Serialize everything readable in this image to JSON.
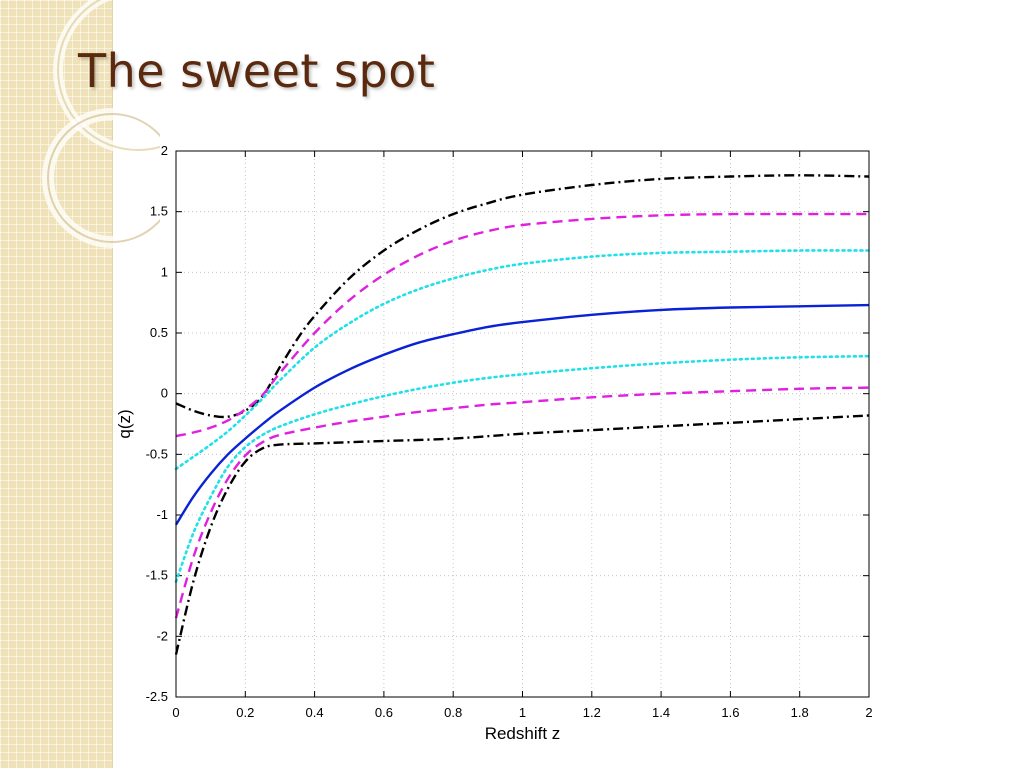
{
  "slide": {
    "title": "The sweet spot"
  },
  "colors": {
    "title": "#5b2a0e",
    "sidebar": "#efe1b8",
    "curve_black": "#000000",
    "curve_magenta": "#e020e0",
    "curve_cyan": "#20e0e8",
    "curve_blue": "#0a22d6"
  },
  "chart_data": {
    "type": "line",
    "title": "",
    "xlabel": "Redshift z",
    "ylabel": "q(z)",
    "xlim": [
      0,
      2
    ],
    "ylim": [
      -2.5,
      2
    ],
    "xticks": [
      "0",
      "0.2",
      "0.4",
      "0.6",
      "0.8",
      "1",
      "1.2",
      "1.4",
      "1.6",
      "1.8",
      "2"
    ],
    "yticks": [
      "2",
      "1.5",
      "1",
      "0.5",
      "0",
      "-0.5",
      "-1",
      "-1.5",
      "-2",
      "-2.5"
    ],
    "grid": true,
    "series": [
      {
        "style": "dashdot",
        "color": "black",
        "x": [
          0,
          0.05,
          0.1,
          0.15,
          0.2,
          0.25,
          0.3,
          0.35,
          0.4,
          0.5,
          0.6,
          0.7,
          0.8,
          0.9,
          1.0,
          1.2,
          1.4,
          1.6,
          1.8,
          2.0
        ],
        "y": [
          -0.08,
          -0.14,
          -0.18,
          -0.19,
          -0.14,
          -0.02,
          0.22,
          0.45,
          0.64,
          0.95,
          1.18,
          1.35,
          1.48,
          1.57,
          1.64,
          1.72,
          1.77,
          1.79,
          1.8,
          1.79
        ]
      },
      {
        "style": "dashed",
        "color": "magenta",
        "x": [
          0,
          0.05,
          0.1,
          0.15,
          0.2,
          0.25,
          0.3,
          0.4,
          0.5,
          0.6,
          0.7,
          0.8,
          0.9,
          1.0,
          1.2,
          1.4,
          1.6,
          1.8,
          2.0
        ],
        "y": [
          -0.35,
          -0.32,
          -0.28,
          -0.22,
          -0.13,
          -0.01,
          0.17,
          0.5,
          0.77,
          0.98,
          1.14,
          1.26,
          1.34,
          1.39,
          1.44,
          1.47,
          1.48,
          1.48,
          1.48
        ]
      },
      {
        "style": "dotted",
        "color": "cyan",
        "x": [
          0,
          0.05,
          0.1,
          0.15,
          0.2,
          0.25,
          0.3,
          0.4,
          0.5,
          0.6,
          0.7,
          0.8,
          0.9,
          1.0,
          1.2,
          1.4,
          1.6,
          1.8,
          2.0
        ],
        "y": [
          -0.62,
          -0.52,
          -0.42,
          -0.31,
          -0.18,
          -0.04,
          0.11,
          0.38,
          0.58,
          0.74,
          0.86,
          0.95,
          1.02,
          1.07,
          1.13,
          1.16,
          1.17,
          1.18,
          1.18
        ]
      },
      {
        "style": "solid",
        "color": "blue",
        "x": [
          0,
          0.05,
          0.1,
          0.15,
          0.2,
          0.25,
          0.3,
          0.4,
          0.5,
          0.6,
          0.7,
          0.8,
          0.9,
          1.0,
          1.2,
          1.4,
          1.6,
          1.8,
          2.0
        ],
        "y": [
          -1.08,
          -0.85,
          -0.66,
          -0.5,
          -0.37,
          -0.25,
          -0.14,
          0.05,
          0.2,
          0.32,
          0.42,
          0.49,
          0.55,
          0.59,
          0.65,
          0.69,
          0.71,
          0.72,
          0.73
        ]
      },
      {
        "style": "dotted",
        "color": "cyan",
        "x": [
          0,
          0.05,
          0.1,
          0.15,
          0.2,
          0.25,
          0.3,
          0.4,
          0.5,
          0.6,
          0.7,
          0.8,
          0.9,
          1.0,
          1.2,
          1.4,
          1.6,
          1.8,
          2.0
        ],
        "y": [
          -1.55,
          -1.15,
          -0.85,
          -0.6,
          -0.44,
          -0.34,
          -0.27,
          -0.17,
          -0.09,
          -0.02,
          0.04,
          0.09,
          0.13,
          0.16,
          0.21,
          0.25,
          0.28,
          0.3,
          0.31
        ]
      },
      {
        "style": "dashed",
        "color": "magenta",
        "x": [
          0,
          0.05,
          0.1,
          0.15,
          0.2,
          0.25,
          0.3,
          0.4,
          0.5,
          0.6,
          0.7,
          0.8,
          0.9,
          1.0,
          1.2,
          1.4,
          1.6,
          1.8,
          2.0
        ],
        "y": [
          -1.85,
          -1.35,
          -0.98,
          -0.7,
          -0.51,
          -0.4,
          -0.34,
          -0.28,
          -0.23,
          -0.19,
          -0.15,
          -0.12,
          -0.09,
          -0.07,
          -0.03,
          0.0,
          0.02,
          0.04,
          0.05
        ]
      },
      {
        "style": "dashdot",
        "color": "black",
        "x": [
          0,
          0.05,
          0.1,
          0.15,
          0.2,
          0.25,
          0.3,
          0.4,
          0.5,
          0.6,
          0.8,
          1.0,
          1.2,
          1.4,
          1.6,
          1.8,
          2.0
        ],
        "y": [
          -2.15,
          -1.55,
          -1.1,
          -0.78,
          -0.56,
          -0.45,
          -0.42,
          -0.41,
          -0.4,
          -0.39,
          -0.37,
          -0.33,
          -0.3,
          -0.27,
          -0.24,
          -0.21,
          -0.18
        ]
      }
    ]
  }
}
